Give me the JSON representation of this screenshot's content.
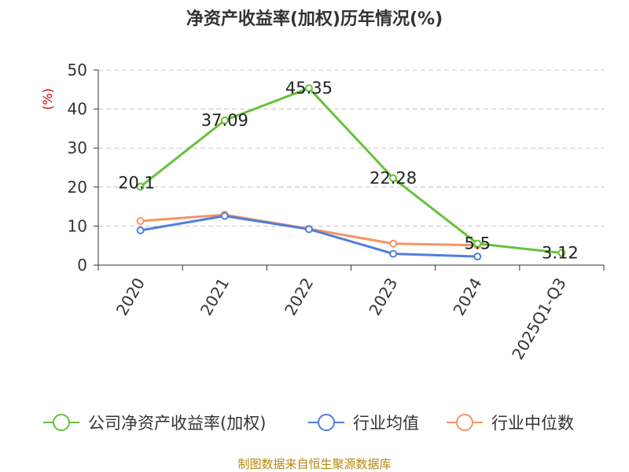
{
  "chart_data": {
    "type": "line",
    "title": "净资产收益率(加权)历年情况(%)",
    "ylabel": "(%)",
    "xlabel": "",
    "ylim": [
      0,
      50
    ],
    "yticks": [
      0,
      10,
      20,
      30,
      40,
      50
    ],
    "grid": true,
    "legend_position": "bottom",
    "categories": [
      "2020",
      "2021",
      "2022",
      "2023",
      "2024",
      "2025Q1-Q3"
    ],
    "series": [
      {
        "name": "公司净资产收益率(加权)",
        "color": "#67c23a",
        "values": [
          20.1,
          37.09,
          45.35,
          22.28,
          5.5,
          3.12
        ],
        "labels": [
          "20.1",
          "37.09",
          "45.35",
          "22.28",
          "5.5",
          "3.12"
        ]
      },
      {
        "name": "行业均值",
        "color": "#4f7fdb",
        "values": [
          8.9,
          12.6,
          9.2,
          2.9,
          2.2,
          null
        ]
      },
      {
        "name": "行业中位数",
        "color": "#f59466",
        "values": [
          11.3,
          12.9,
          9.3,
          5.5,
          5.1,
          null
        ]
      }
    ],
    "source": "制图数据来自恒生聚源数据库"
  }
}
